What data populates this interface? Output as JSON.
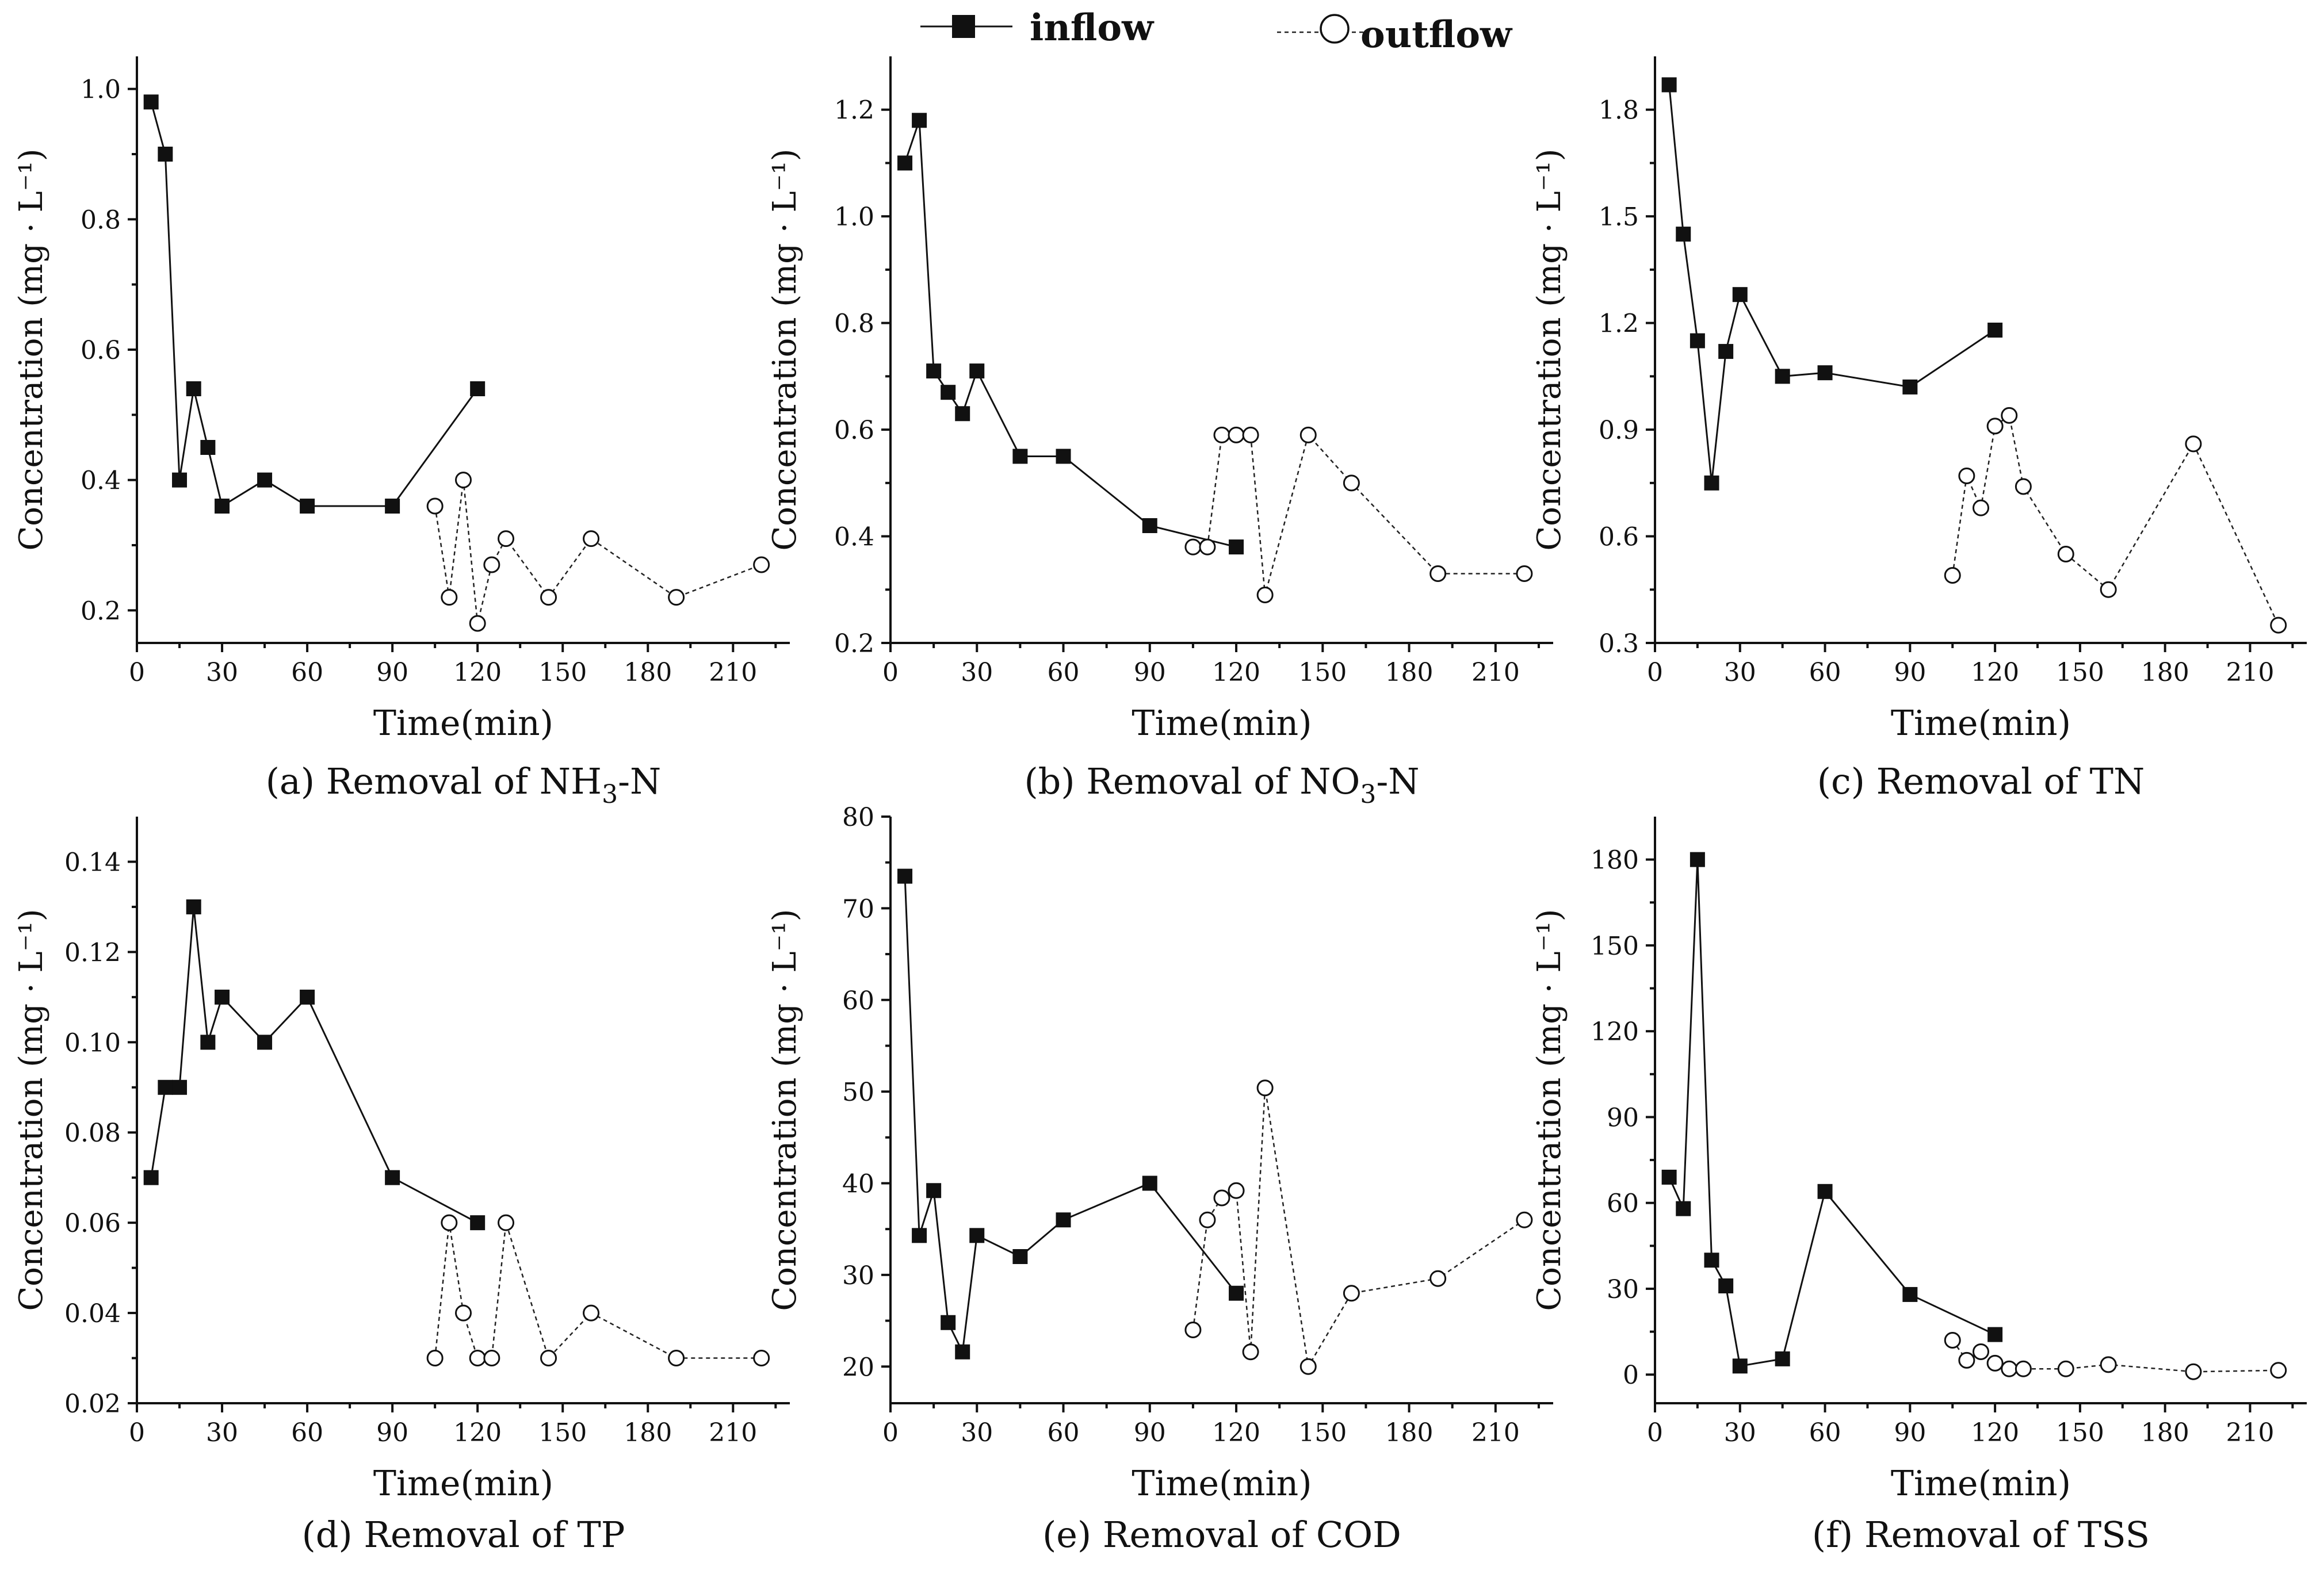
{
  "legend": {
    "inflow": "inflow",
    "outflow": "outflow"
  },
  "chart_data": [
    {
      "type": "line",
      "caption_prefix": "(a)   Removal of NH",
      "caption_sub": "3",
      "caption_suffix": "-N",
      "xlabel": "Time(min)",
      "ylabel": "Concentration (mg · L⁻¹)",
      "xlim": [
        0,
        230
      ],
      "ylim": [
        0.15,
        1.05
      ],
      "xticks": [
        0,
        30,
        60,
        90,
        120,
        150,
        180,
        210
      ],
      "yticks": [
        0.2,
        0.4,
        0.6,
        0.8,
        1.0
      ],
      "ytick_labels": [
        "0.2",
        "0.4",
        "0.6",
        "0.8",
        "1.0"
      ],
      "series": [
        {
          "name": "inflow",
          "x": [
            5,
            10,
            15,
            20,
            25,
            30,
            45,
            60,
            90,
            120
          ],
          "y": [
            0.98,
            0.9,
            0.4,
            0.54,
            0.45,
            0.36,
            0.4,
            0.36,
            0.36,
            0.54
          ]
        },
        {
          "name": "outflow",
          "x": [
            105,
            110,
            115,
            120,
            125,
            130,
            145,
            160,
            190,
            220
          ],
          "y": [
            0.36,
            0.22,
            0.4,
            0.18,
            0.27,
            0.31,
            0.22,
            0.31,
            0.22,
            0.27
          ]
        }
      ]
    },
    {
      "type": "line",
      "caption_prefix": "(b)   Removal of NO",
      "caption_sub": "3",
      "caption_suffix": "-N",
      "xlabel": "Time(min)",
      "ylabel": "Concentration (mg · L⁻¹)",
      "xlim": [
        0,
        230
      ],
      "ylim": [
        0.2,
        1.3
      ],
      "xticks": [
        0,
        30,
        60,
        90,
        120,
        150,
        180,
        210
      ],
      "yticks": [
        0.2,
        0.4,
        0.6,
        0.8,
        1.0,
        1.2
      ],
      "ytick_labels": [
        "0.2",
        "0.4",
        "0.6",
        "0.8",
        "1.0",
        "1.2"
      ],
      "series": [
        {
          "name": "inflow",
          "x": [
            5,
            10,
            15,
            20,
            25,
            30,
            45,
            60,
            90,
            120
          ],
          "y": [
            1.1,
            1.18,
            0.71,
            0.67,
            0.63,
            0.71,
            0.55,
            0.55,
            0.42,
            0.38
          ]
        },
        {
          "name": "outflow",
          "x": [
            105,
            110,
            115,
            120,
            125,
            130,
            145,
            160,
            190,
            220
          ],
          "y": [
            0.38,
            0.38,
            0.59,
            0.59,
            0.59,
            0.29,
            0.59,
            0.5,
            0.33,
            0.33
          ]
        }
      ]
    },
    {
      "type": "line",
      "caption_prefix": "(c)   Removal of TN",
      "caption_sub": "",
      "caption_suffix": "",
      "xlabel": "Time(min)",
      "ylabel": "Concentration (mg · L⁻¹)",
      "xlim": [
        0,
        230
      ],
      "ylim": [
        0.3,
        1.95
      ],
      "xticks": [
        0,
        30,
        60,
        90,
        120,
        150,
        180,
        210
      ],
      "yticks": [
        0.3,
        0.6,
        0.9,
        1.2,
        1.5,
        1.8
      ],
      "ytick_labels": [
        "0.3",
        "0.6",
        "0.9",
        "1.2",
        "1.5",
        "1.8"
      ],
      "series": [
        {
          "name": "inflow",
          "x": [
            5,
            10,
            15,
            20,
            25,
            30,
            45,
            60,
            90,
            120
          ],
          "y": [
            1.87,
            1.45,
            1.15,
            0.75,
            1.12,
            1.28,
            1.05,
            1.06,
            1.02,
            1.18
          ]
        },
        {
          "name": "outflow",
          "x": [
            105,
            110,
            115,
            120,
            125,
            130,
            145,
            160,
            190,
            220
          ],
          "y": [
            0.49,
            0.77,
            0.68,
            0.91,
            0.94,
            0.74,
            0.55,
            0.45,
            0.86,
            0.35
          ]
        }
      ]
    },
    {
      "type": "line",
      "caption_prefix": "(d)  Removal of TP",
      "caption_sub": "",
      "caption_suffix": "",
      "xlabel": "Time(min)",
      "ylabel": "Concentration (mg · L⁻¹)",
      "xlim": [
        0,
        230
      ],
      "ylim": [
        0.02,
        0.15
      ],
      "xticks": [
        0,
        30,
        60,
        90,
        120,
        150,
        180,
        210
      ],
      "yticks": [
        0.02,
        0.04,
        0.06,
        0.08,
        0.1,
        0.12,
        0.14
      ],
      "ytick_labels": [
        "0.02",
        "0.04",
        "0.06",
        "0.08",
        "0.10",
        "0.12",
        "0.14"
      ],
      "series": [
        {
          "name": "inflow",
          "x": [
            5,
            10,
            15,
            20,
            25,
            30,
            45,
            60,
            90,
            120
          ],
          "y": [
            0.07,
            0.09,
            0.09,
            0.13,
            0.1,
            0.11,
            0.1,
            0.11,
            0.07,
            0.06
          ]
        },
        {
          "name": "outflow",
          "x": [
            105,
            110,
            115,
            120,
            125,
            130,
            145,
            160,
            190,
            220
          ],
          "y": [
            0.03,
            0.06,
            0.04,
            0.03,
            0.03,
            0.06,
            0.03,
            0.04,
            0.03,
            0.03
          ]
        }
      ]
    },
    {
      "type": "line",
      "caption_prefix": "(e)   Removal of COD",
      "caption_sub": "",
      "caption_suffix": "",
      "xlabel": "Time(min)",
      "ylabel": "Concentration (mg · L⁻¹)",
      "xlim": [
        0,
        230
      ],
      "ylim": [
        16,
        80
      ],
      "xticks": [
        0,
        30,
        60,
        90,
        120,
        150,
        180,
        210
      ],
      "yticks": [
        20,
        30,
        40,
        50,
        60,
        70,
        80
      ],
      "ytick_labels": [
        "20",
        "30",
        "40",
        "50",
        "60",
        "70",
        "80"
      ],
      "series": [
        {
          "name": "inflow",
          "x": [
            5,
            10,
            15,
            20,
            25,
            30,
            45,
            60,
            90,
            120
          ],
          "y": [
            73.5,
            34.3,
            39.2,
            24.8,
            21.6,
            34.3,
            32.0,
            36.0,
            40.0,
            28.0
          ]
        },
        {
          "name": "outflow",
          "x": [
            105,
            110,
            115,
            120,
            125,
            130,
            145,
            160,
            190,
            220
          ],
          "y": [
            24.0,
            36.0,
            38.4,
            39.2,
            21.6,
            50.4,
            20.0,
            28.0,
            29.6,
            36.0
          ]
        }
      ]
    },
    {
      "type": "line",
      "caption_prefix": "(f)   Removal of TSS",
      "caption_sub": "",
      "caption_suffix": "",
      "xlabel": "Time(min)",
      "ylabel": "Concentration (mg · L⁻¹)",
      "xlim": [
        0,
        230
      ],
      "ylim": [
        -10,
        195
      ],
      "xticks": [
        0,
        30,
        60,
        90,
        120,
        150,
        180,
        210
      ],
      "yticks": [
        0,
        30,
        60,
        90,
        120,
        150,
        180
      ],
      "ytick_labels": [
        "0",
        "30",
        "60",
        "90",
        "120",
        "150",
        "180"
      ],
      "series": [
        {
          "name": "inflow",
          "x": [
            5,
            10,
            15,
            20,
            25,
            30,
            45,
            60,
            90,
            120
          ],
          "y": [
            69,
            58,
            180,
            40,
            31,
            3,
            5.5,
            64,
            28,
            14
          ]
        },
        {
          "name": "outflow",
          "x": [
            105,
            110,
            115,
            120,
            125,
            130,
            145,
            160,
            190,
            220
          ],
          "y": [
            12,
            5,
            8,
            4,
            2,
            2,
            2,
            3.5,
            1,
            1.5
          ]
        }
      ]
    }
  ]
}
